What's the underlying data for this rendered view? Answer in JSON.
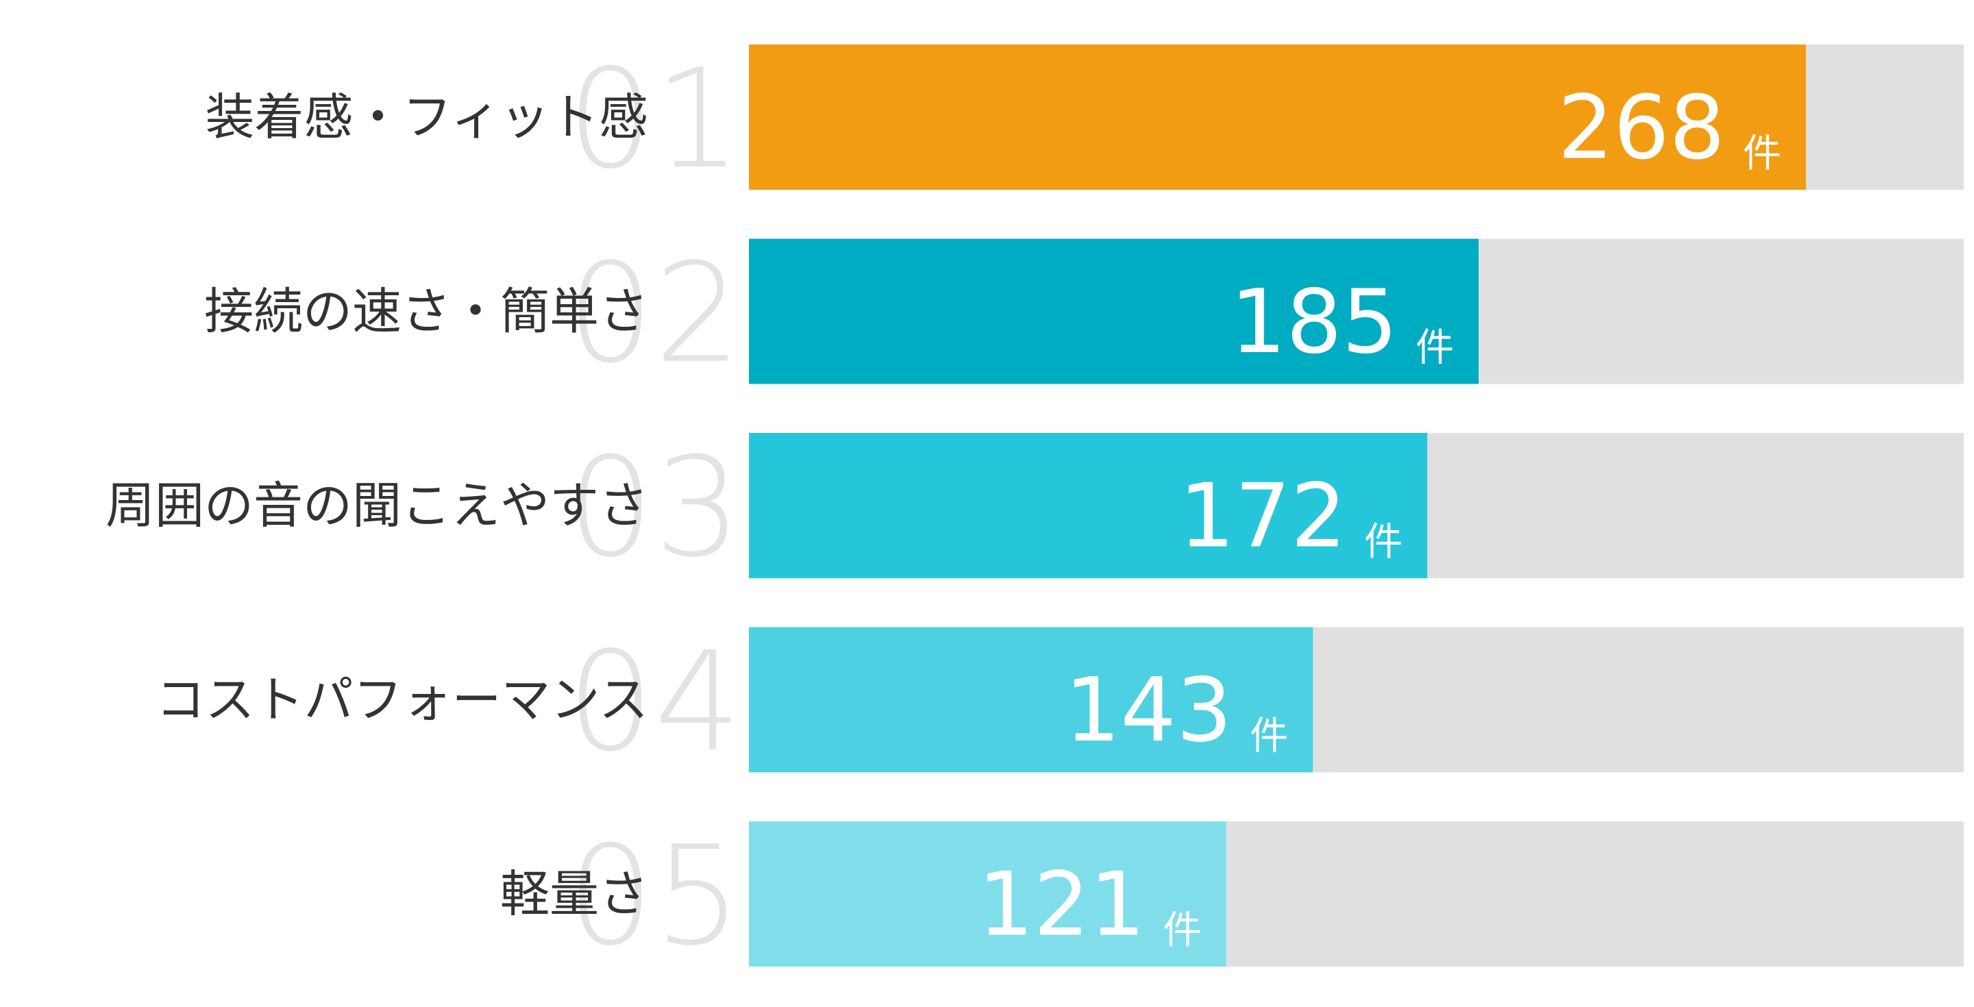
{
  "chart_data": {
    "type": "bar",
    "orientation": "horizontal",
    "ranks": [
      "01",
      "02",
      "03",
      "04",
      "05"
    ],
    "categories": [
      "装着感・フィット感",
      "接続の速さ・簡単さ",
      "周囲の音の聞こえやすさ",
      "コストパフォーマンス",
      "軽量さ"
    ],
    "values": [
      268,
      185,
      172,
      143,
      121
    ],
    "unit": "件",
    "colors": [
      "#f29c14",
      "#00acc1",
      "#26c6da",
      "#4dd0e1",
      "#80deea"
    ],
    "track_color": "#e0e0e0",
    "xlim": [
      0,
      308
    ]
  }
}
